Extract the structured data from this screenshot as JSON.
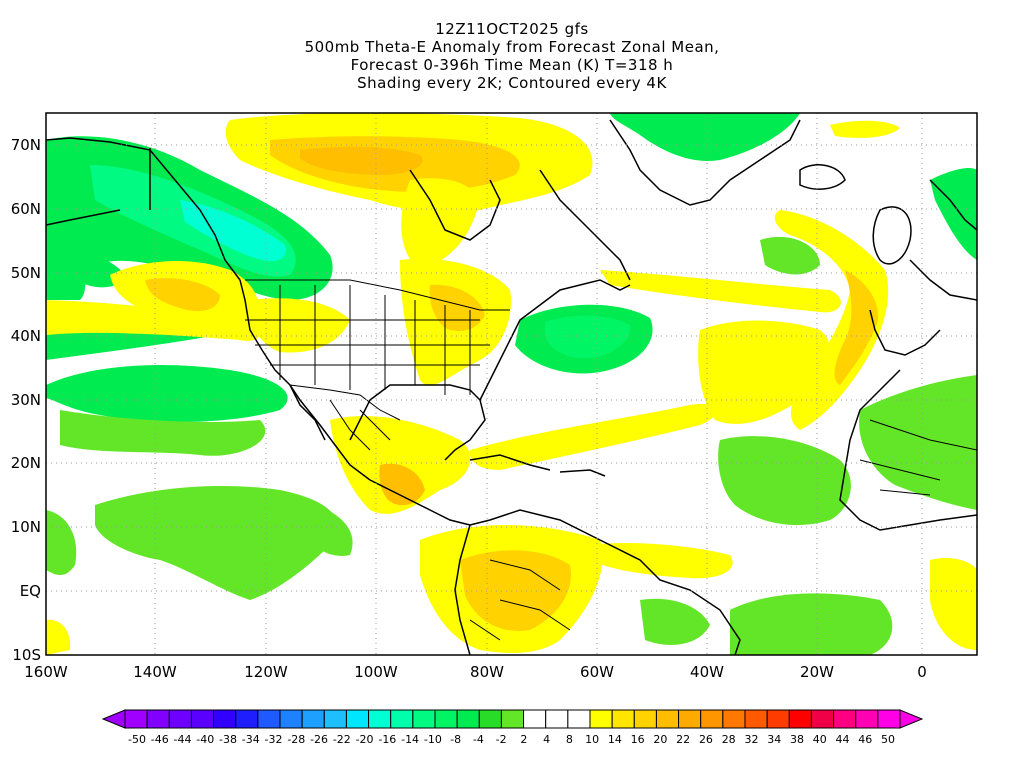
{
  "title": {
    "line1": "12Z11OCT2025 gfs",
    "line2": "500mb Theta-E Anomaly from Forecast Zonal Mean,",
    "line3": "Forecast 0-396h Time Mean (K) T=318 h",
    "line4": "Shading every 2K; Contoured every 4K"
  },
  "lat_labels": [
    "70N",
    "60N",
    "50N",
    "40N",
    "30N",
    "20N",
    "10N",
    "EQ",
    "10S"
  ],
  "lon_labels": [
    "160W",
    "140W",
    "120W",
    "100W",
    "80W",
    "60W",
    "40W",
    "20W",
    "0"
  ],
  "colorbar": {
    "labels": [
      "-50",
      "-46",
      "-44",
      "-40",
      "-38",
      "-34",
      "-32",
      "-28",
      "-26",
      "-22",
      "-20",
      "-16",
      "-14",
      "-10",
      "-8",
      "-4",
      "-2",
      "2",
      "4",
      "8",
      "10",
      "14",
      "16",
      "20",
      "22",
      "26",
      "28",
      "32",
      "34",
      "38",
      "40",
      "44",
      "46",
      "50"
    ],
    "colors": [
      "#a000ff",
      "#8200ff",
      "#6e00ff",
      "#5a00ff",
      "#3200ff",
      "#1e1eff",
      "#1e5aff",
      "#1e82ff",
      "#1ea0ff",
      "#1ebeff",
      "#00e6ff",
      "#00ffd2",
      "#00ffaa",
      "#00fa82",
      "#00f564",
      "#00eb50",
      "#28dc28",
      "#64e628",
      "#ffffff",
      "#ffffff",
      "#ffffff",
      "#ffff00",
      "#ffe600",
      "#ffd200",
      "#ffbe00",
      "#ffaa00",
      "#ff9600",
      "#ff7800",
      "#ff5a00",
      "#ff3c00",
      "#ff0000",
      "#f00046",
      "#ff0082",
      "#ff00b4",
      "#ff00e6"
    ]
  },
  "palette": {
    "land_green": "#64e628",
    "green_dark": "#28dc28",
    "teal": "#00eb50",
    "cyan": "#00f564",
    "aqua": "#00fa82",
    "yellow": "#ffff00",
    "gold": "#ffe600",
    "orange": "#ffd200",
    "deep_orange": "#ffbe00",
    "coast": "#000000"
  }
}
